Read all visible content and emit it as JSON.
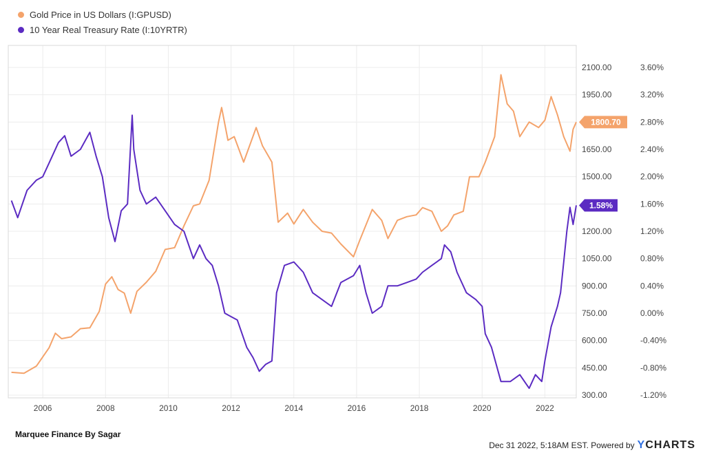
{
  "chart_data": {
    "type": "line",
    "legend_placement": "top-left",
    "grid": true,
    "x_ticks": [
      "2006",
      "2008",
      "2010",
      "2012",
      "2014",
      "2016",
      "2018",
      "2020",
      "2022"
    ],
    "xlim": [
      2004.9,
      2023.0
    ],
    "y_left": {
      "series": "Gold Price in US Dollars (I:GPUSD)",
      "ticks": [
        "2100.00",
        "1950.00",
        "1800.00",
        "1650.00",
        "1500.00",
        "1350.00",
        "1200.00",
        "1050.00",
        "900.00",
        "750.00",
        "600.00",
        "450.00",
        "300.00"
      ],
      "ylim": [
        300,
        2100
      ]
    },
    "y_right": {
      "series": "10 Year Real Treasury Rate (I:10YRTR)",
      "ticks": [
        "3.60%",
        "3.20%",
        "2.80%",
        "2.40%",
        "2.00%",
        "1.60%",
        "1.20%",
        "0.80%",
        "0.40%",
        "0.00%",
        "-0.40%",
        "-0.80%",
        "-1.20%"
      ],
      "ylim": [
        -1.2,
        3.6
      ]
    },
    "series": [
      {
        "name": "Gold Price in US Dollars (I:GPUSD)",
        "color": "#f4a36b",
        "axis": "left",
        "last_value_label": "1800.70",
        "points": [
          [
            2005.0,
            425
          ],
          [
            2005.4,
            420
          ],
          [
            2005.8,
            460
          ],
          [
            2006.2,
            560
          ],
          [
            2006.4,
            640
          ],
          [
            2006.6,
            610
          ],
          [
            2006.9,
            620
          ],
          [
            2007.2,
            665
          ],
          [
            2007.5,
            670
          ],
          [
            2007.8,
            760
          ],
          [
            2008.0,
            910
          ],
          [
            2008.2,
            950
          ],
          [
            2008.4,
            880
          ],
          [
            2008.6,
            860
          ],
          [
            2008.8,
            750
          ],
          [
            2009.0,
            870
          ],
          [
            2009.3,
            920
          ],
          [
            2009.6,
            980
          ],
          [
            2009.9,
            1100
          ],
          [
            2010.2,
            1110
          ],
          [
            2010.5,
            1230
          ],
          [
            2010.8,
            1340
          ],
          [
            2011.0,
            1350
          ],
          [
            2011.3,
            1480
          ],
          [
            2011.6,
            1800
          ],
          [
            2011.7,
            1880
          ],
          [
            2011.9,
            1700
          ],
          [
            2012.1,
            1720
          ],
          [
            2012.4,
            1580
          ],
          [
            2012.8,
            1770
          ],
          [
            2013.0,
            1670
          ],
          [
            2013.3,
            1580
          ],
          [
            2013.5,
            1250
          ],
          [
            2013.8,
            1300
          ],
          [
            2014.0,
            1240
          ],
          [
            2014.3,
            1320
          ],
          [
            2014.6,
            1250
          ],
          [
            2014.9,
            1200
          ],
          [
            2015.2,
            1190
          ],
          [
            2015.5,
            1130
          ],
          [
            2015.9,
            1060
          ],
          [
            2016.1,
            1150
          ],
          [
            2016.5,
            1320
          ],
          [
            2016.8,
            1260
          ],
          [
            2017.0,
            1160
          ],
          [
            2017.3,
            1260
          ],
          [
            2017.6,
            1280
          ],
          [
            2017.9,
            1290
          ],
          [
            2018.1,
            1330
          ],
          [
            2018.4,
            1310
          ],
          [
            2018.7,
            1200
          ],
          [
            2018.9,
            1230
          ],
          [
            2019.1,
            1290
          ],
          [
            2019.4,
            1310
          ],
          [
            2019.6,
            1500
          ],
          [
            2019.9,
            1500
          ],
          [
            2020.1,
            1580
          ],
          [
            2020.4,
            1720
          ],
          [
            2020.6,
            2060
          ],
          [
            2020.8,
            1900
          ],
          [
            2021.0,
            1860
          ],
          [
            2021.2,
            1720
          ],
          [
            2021.5,
            1800
          ],
          [
            2021.8,
            1770
          ],
          [
            2022.0,
            1810
          ],
          [
            2022.2,
            1940
          ],
          [
            2022.4,
            1840
          ],
          [
            2022.6,
            1720
          ],
          [
            2022.8,
            1640
          ],
          [
            2022.9,
            1760
          ],
          [
            2023.0,
            1800
          ]
        ]
      },
      {
        "name": "10 Year Real Treasury Rate (I:10YRTR)",
        "color": "#5b2bc2",
        "axis": "right",
        "last_value_label": "1.58%",
        "points": [
          [
            2005.0,
            1.65
          ],
          [
            2005.2,
            1.4
          ],
          [
            2005.5,
            1.8
          ],
          [
            2005.8,
            1.95
          ],
          [
            2006.0,
            2.0
          ],
          [
            2006.2,
            2.2
          ],
          [
            2006.5,
            2.5
          ],
          [
            2006.7,
            2.6
          ],
          [
            2006.9,
            2.3
          ],
          [
            2007.2,
            2.4
          ],
          [
            2007.5,
            2.65
          ],
          [
            2007.7,
            2.3
          ],
          [
            2007.9,
            2.0
          ],
          [
            2008.1,
            1.4
          ],
          [
            2008.3,
            1.05
          ],
          [
            2008.5,
            1.5
          ],
          [
            2008.7,
            1.6
          ],
          [
            2008.85,
            2.9
          ],
          [
            2008.9,
            2.4
          ],
          [
            2009.1,
            1.8
          ],
          [
            2009.3,
            1.6
          ],
          [
            2009.6,
            1.7
          ],
          [
            2009.9,
            1.5
          ],
          [
            2010.2,
            1.3
          ],
          [
            2010.5,
            1.2
          ],
          [
            2010.8,
            0.8
          ],
          [
            2011.0,
            1.0
          ],
          [
            2011.2,
            0.8
          ],
          [
            2011.4,
            0.7
          ],
          [
            2011.6,
            0.4
          ],
          [
            2011.8,
            0.0
          ],
          [
            2012.0,
            -0.05
          ],
          [
            2012.2,
            -0.1
          ],
          [
            2012.5,
            -0.5
          ],
          [
            2012.7,
            -0.65
          ],
          [
            2012.9,
            -0.85
          ],
          [
            2013.1,
            -0.75
          ],
          [
            2013.3,
            -0.7
          ],
          [
            2013.45,
            0.3
          ],
          [
            2013.7,
            0.7
          ],
          [
            2014.0,
            0.75
          ],
          [
            2014.3,
            0.6
          ],
          [
            2014.6,
            0.3
          ],
          [
            2014.9,
            0.2
          ],
          [
            2015.2,
            0.1
          ],
          [
            2015.5,
            0.45
          ],
          [
            2015.9,
            0.55
          ],
          [
            2016.1,
            0.7
          ],
          [
            2016.3,
            0.3
          ],
          [
            2016.5,
            0.0
          ],
          [
            2016.8,
            0.1
          ],
          [
            2017.0,
            0.4
          ],
          [
            2017.3,
            0.4
          ],
          [
            2017.6,
            0.45
          ],
          [
            2017.9,
            0.5
          ],
          [
            2018.1,
            0.6
          ],
          [
            2018.4,
            0.7
          ],
          [
            2018.7,
            0.8
          ],
          [
            2018.8,
            1.0
          ],
          [
            2019.0,
            0.9
          ],
          [
            2019.2,
            0.6
          ],
          [
            2019.5,
            0.3
          ],
          [
            2019.8,
            0.2
          ],
          [
            2020.0,
            0.1
          ],
          [
            2020.1,
            -0.3
          ],
          [
            2020.3,
            -0.5
          ],
          [
            2020.6,
            -1.0
          ],
          [
            2020.9,
            -1.0
          ],
          [
            2021.2,
            -0.9
          ],
          [
            2021.5,
            -1.1
          ],
          [
            2021.7,
            -0.9
          ],
          [
            2021.9,
            -1.0
          ],
          [
            2022.0,
            -0.7
          ],
          [
            2022.2,
            -0.2
          ],
          [
            2022.4,
            0.1
          ],
          [
            2022.5,
            0.3
          ],
          [
            2022.6,
            0.75
          ],
          [
            2022.7,
            1.2
          ],
          [
            2022.8,
            1.55
          ],
          [
            2022.9,
            1.3
          ],
          [
            2023.0,
            1.58
          ]
        ]
      }
    ]
  },
  "footer": {
    "source": "Marquee Finance By Sagar",
    "timestamp": "Dec 31 2022, 5:18AM EST. Powered by",
    "brand_prefix": "Y",
    "brand_rest": "CHARTS"
  }
}
